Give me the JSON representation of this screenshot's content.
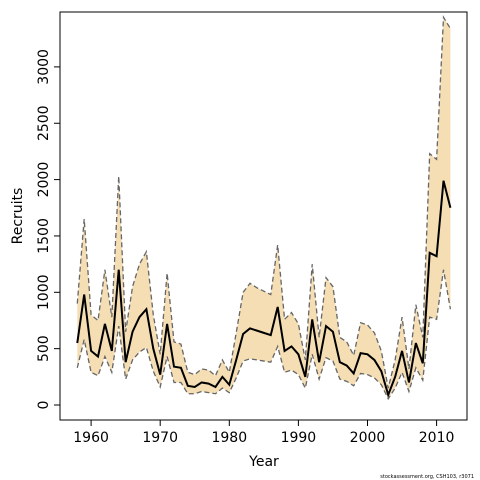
{
  "chart_data": {
    "type": "line_band",
    "xlabel": "Year",
    "ylabel": "Recruits",
    "caption": "stockassessment.org, CSH103, r3071",
    "x": [
      1958,
      1959,
      1960,
      1961,
      1962,
      1963,
      1964,
      1965,
      1966,
      1967,
      1968,
      1969,
      1970,
      1971,
      1972,
      1973,
      1974,
      1975,
      1976,
      1977,
      1978,
      1979,
      1980,
      1981,
      1982,
      1983,
      1984,
      1985,
      1986,
      1987,
      1988,
      1989,
      1990,
      1991,
      1992,
      1993,
      1994,
      1995,
      1996,
      1997,
      1998,
      1999,
      2000,
      2001,
      2002,
      2003,
      2004,
      2005,
      2006,
      2007,
      2008,
      2009,
      2010,
      2011,
      2012
    ],
    "series": [
      {
        "color": "#000000",
        "values": [
          550,
          980,
          480,
          430,
          720,
          480,
          1200,
          380,
          650,
          780,
          850,
          500,
          270,
          720,
          340,
          330,
          170,
          160,
          200,
          190,
          160,
          250,
          180,
          400,
          630,
          680,
          660,
          640,
          620,
          870,
          480,
          520,
          450,
          250,
          760,
          380,
          700,
          650,
          380,
          350,
          280,
          460,
          450,
          400,
          300,
          90,
          250,
          480,
          200,
          550,
          370,
          1350,
          1320,
          1990,
          1750
        ]
      },
      {
        "color": "#666666",
        "values": [
          330,
          580,
          290,
          260,
          430,
          290,
          700,
          230,
          400,
          470,
          510,
          300,
          160,
          430,
          200,
          200,
          100,
          100,
          120,
          110,
          100,
          150,
          110,
          240,
          390,
          410,
          400,
          390,
          380,
          520,
          290,
          310,
          270,
          150,
          450,
          230,
          420,
          390,
          230,
          210,
          170,
          280,
          270,
          240,
          180,
          55,
          150,
          290,
          120,
          330,
          220,
          780,
          760,
          1200,
          850
        ]
      },
      {
        "color": "#666666",
        "values": [
          900,
          1650,
          800,
          750,
          1200,
          780,
          2030,
          650,
          1050,
          1250,
          1360,
          800,
          450,
          1170,
          560,
          540,
          290,
          270,
          320,
          310,
          260,
          400,
          290,
          640,
          1000,
          1080,
          1040,
          1010,
          980,
          1420,
          760,
          820,
          720,
          400,
          1250,
          600,
          1130,
          1050,
          600,
          560,
          440,
          730,
          710,
          640,
          480,
          150,
          400,
          780,
          320,
          890,
          600,
          2230,
          2180,
          3440,
          3340
        ]
      }
    ],
    "band_color": "#f5deb3",
    "xlim": [
      1955.5,
      2014.4
    ],
    "ylim": [
      -133,
      3487
    ],
    "xticks": [
      1960,
      1970,
      1980,
      1990,
      2000,
      2010
    ],
    "yticks": [
      0,
      500,
      1000,
      1500,
      2000,
      2500,
      3000
    ]
  }
}
